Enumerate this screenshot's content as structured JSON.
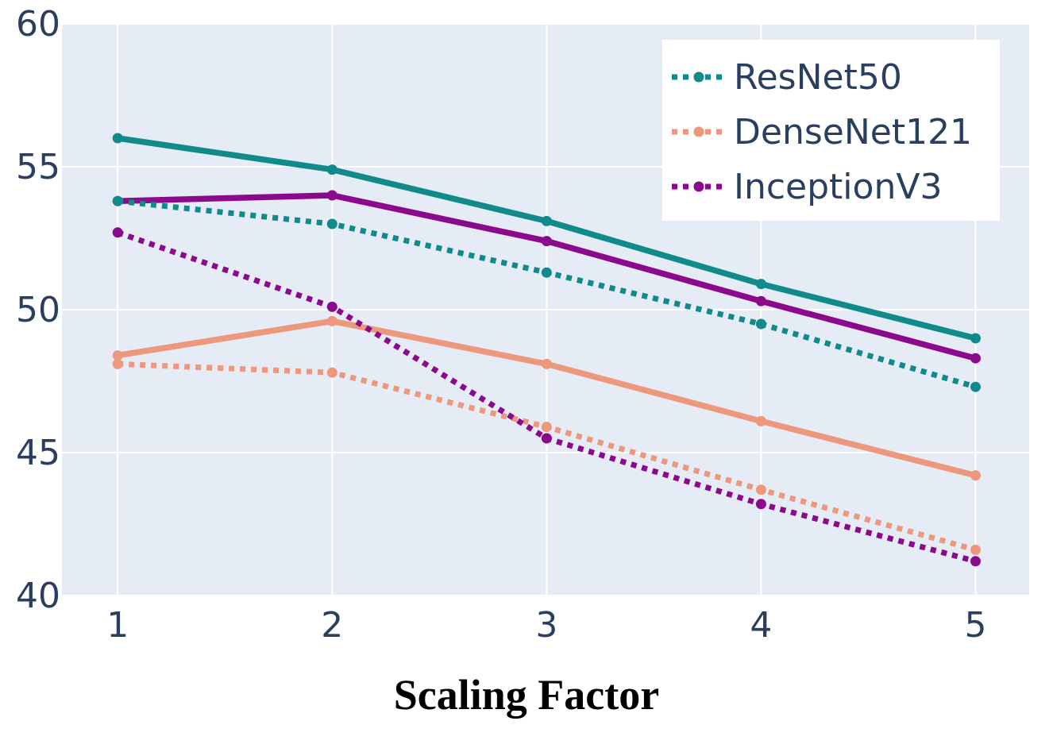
{
  "chart_data": {
    "type": "line",
    "title": "",
    "xlabel": "Scaling Factor",
    "ylabel": "",
    "x": [
      1,
      2,
      3,
      4,
      5
    ],
    "xlim": [
      0.74,
      5.25
    ],
    "ylim": [
      40,
      60
    ],
    "xticks": [
      "1",
      "2",
      "3",
      "4",
      "5"
    ],
    "yticks": [
      "40",
      "45",
      "50",
      "55",
      "60"
    ],
    "grid": true,
    "plot_background": "#e5ecf6",
    "legend_position": "top-right",
    "legend": [
      {
        "name": "ResNet50",
        "color": "#108a8a"
      },
      {
        "name": "DenseNet121",
        "color": "#ec987c"
      },
      {
        "name": "InceptionV3",
        "color": "#8b0a8c"
      }
    ],
    "series": [
      {
        "model": "ResNet50",
        "style": "solid",
        "color": "#108a8a",
        "values": [
          56.0,
          54.9,
          53.1,
          50.9,
          49.0
        ]
      },
      {
        "name": "ResNet50",
        "style": "dotted",
        "color": "#108a8a",
        "values": [
          53.8,
          53.0,
          51.3,
          49.5,
          47.3
        ]
      },
      {
        "model": "DenseNet121",
        "style": "solid",
        "color": "#ec987c",
        "values": [
          48.4,
          49.6,
          48.1,
          46.1,
          44.2
        ]
      },
      {
        "name": "DenseNet121",
        "style": "dotted",
        "color": "#ec987c",
        "values": [
          48.1,
          47.8,
          45.9,
          43.7,
          41.6
        ]
      },
      {
        "model": "InceptionV3",
        "style": "solid",
        "color": "#8b0a8c",
        "values": [
          53.8,
          54.0,
          52.4,
          50.3,
          48.3
        ]
      },
      {
        "name": "InceptionV3",
        "style": "dotted",
        "color": "#8b0a8c",
        "values": [
          52.7,
          50.1,
          45.5,
          43.2,
          41.2
        ]
      }
    ]
  }
}
